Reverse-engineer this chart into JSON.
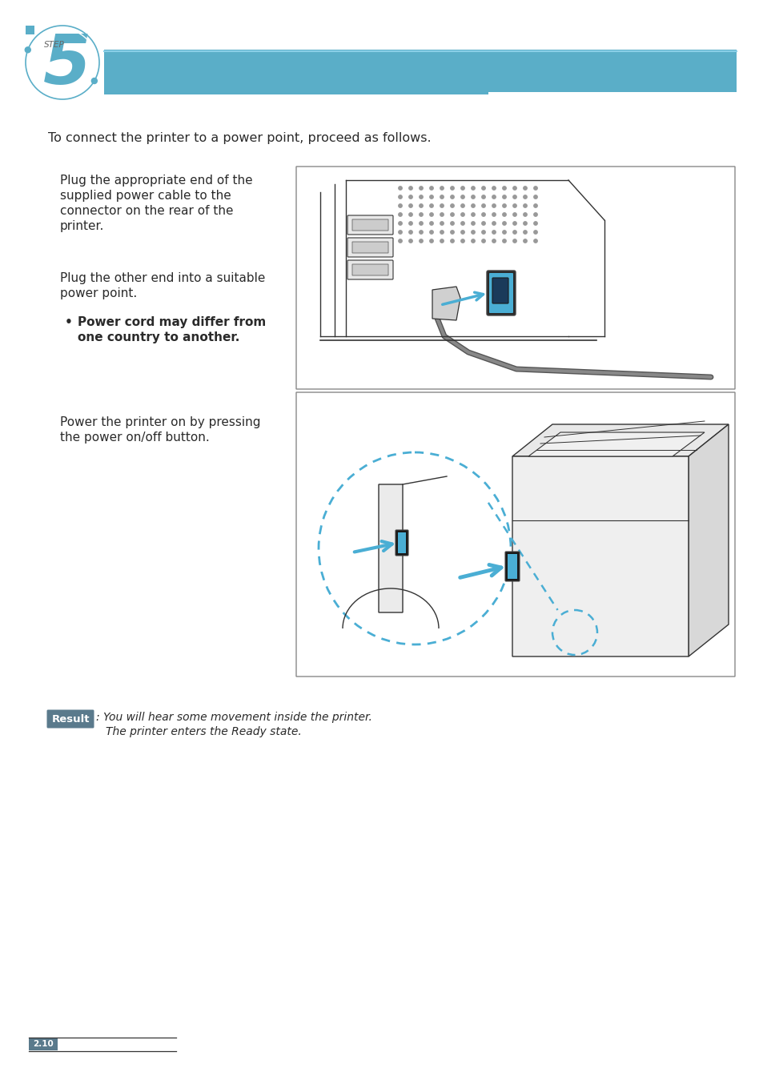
{
  "bg_color": "#ffffff",
  "header_bar_color": "#5aaec8",
  "step_circle_color": "#5aaec8",
  "intro_text": "To connect the printer to a power point, proceed as follows.",
  "para1_line1": "Plug the appropriate end of the",
  "para1_line2": "supplied power cable to the",
  "para1_line3": "connector on the rear of the",
  "para1_line4": "printer.",
  "para2_line1": "Plug the other end into a suitable",
  "para2_line2": "power point.",
  "bullet_text_line1": "Power cord may differ from",
  "bullet_text_line2": "one country to another.",
  "para3_line1": "Power the printer on by pressing",
  "para3_line2": "the power on/off button.",
  "result_label": "Result",
  "result_colon": ":",
  "result_text_line1": " You will hear some movement inside the printer.",
  "result_text_line2": "The printer enters the Ready state.",
  "page_number": "2.10",
  "text_color_dark": "#2a2a2a",
  "result_bg": "#5a7a8c",
  "img1_border": "#888888",
  "img2_border": "#888888",
  "blue_accent": "#4aaed4",
  "dash_circle_color": "#4aaed4",
  "line_color": "#333333",
  "dot_color": "#999999"
}
